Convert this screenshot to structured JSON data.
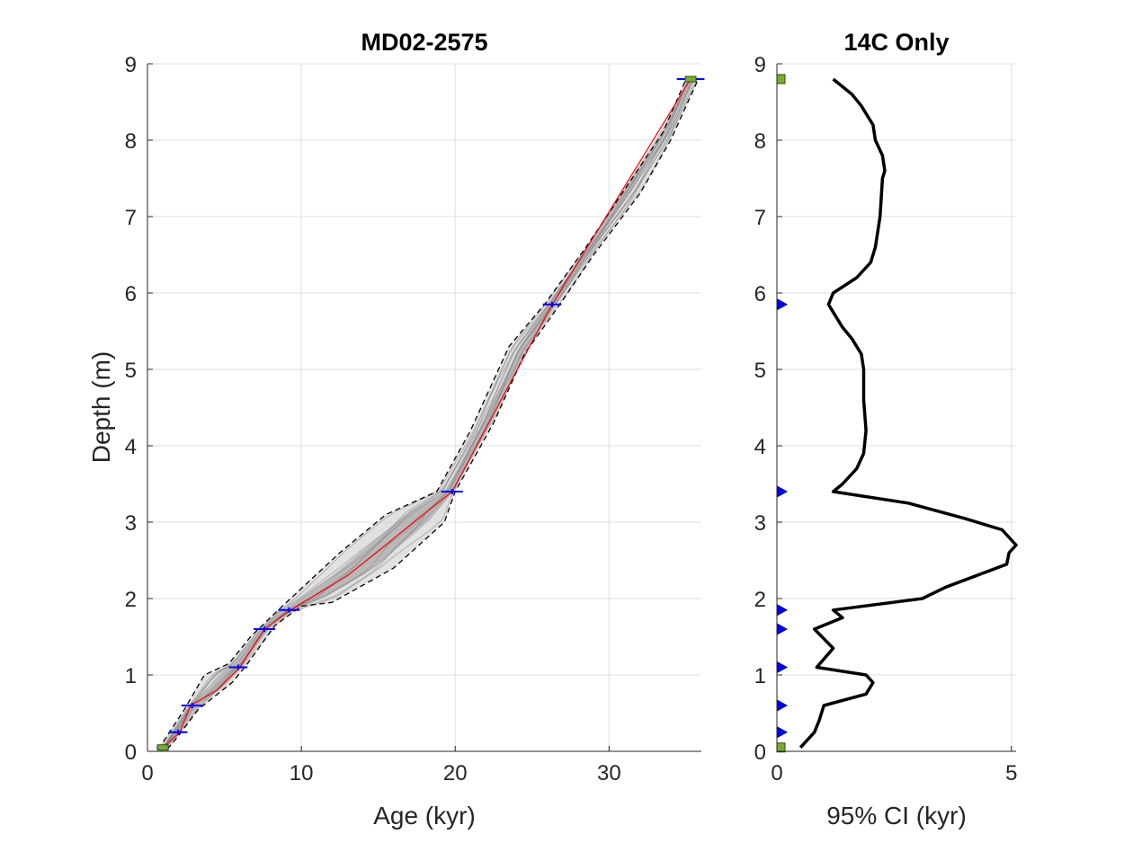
{
  "chart_data": [
    {
      "type": "line",
      "title": "MD02-2575",
      "xlabel": "Age (kyr)",
      "ylabel": "Depth (m)",
      "xlim": [
        0,
        36
      ],
      "ylim": [
        0,
        9
      ],
      "y_reversed": false,
      "grid": true,
      "xticks": [
        0,
        10,
        20,
        30
      ],
      "yticks": [
        0,
        1,
        2,
        3,
        4,
        5,
        6,
        7,
        8,
        9
      ],
      "series": [
        {
          "role": "median",
          "color": "#ff0000",
          "points": [
            [
              0.95,
              0.03
            ],
            [
              1.3,
              0.1
            ],
            [
              2.1,
              0.25
            ],
            [
              2.8,
              0.6
            ],
            [
              4.5,
              0.8
            ],
            [
              6.0,
              1.1
            ],
            [
              7.6,
              1.6
            ],
            [
              9.3,
              1.85
            ],
            [
              13.0,
              2.3
            ],
            [
              19.8,
              3.4
            ],
            [
              26.3,
              5.85
            ],
            [
              35.3,
              8.8
            ]
          ]
        },
        {
          "role": "upper_95",
          "color": "#000000",
          "points": [
            [
              0.7,
              0.03
            ],
            [
              1.1,
              0.15
            ],
            [
              2.4,
              0.55
            ],
            [
              3.7,
              1.0
            ],
            [
              5.3,
              1.15
            ],
            [
              6.7,
              1.5
            ],
            [
              8.5,
              1.85
            ],
            [
              12.5,
              2.6
            ],
            [
              15.5,
              3.1
            ],
            [
              18.8,
              3.4
            ],
            [
              21.0,
              4.2
            ],
            [
              23.5,
              5.3
            ],
            [
              25.8,
              5.85
            ],
            [
              28.5,
              6.6
            ],
            [
              31.5,
              7.5
            ],
            [
              33.5,
              8.1
            ],
            [
              35.0,
              8.8
            ]
          ]
        },
        {
          "role": "lower_95",
          "color": "#000000",
          "points": [
            [
              1.3,
              0.03
            ],
            [
              2.0,
              0.2
            ],
            [
              3.3,
              0.55
            ],
            [
              5.5,
              0.9
            ],
            [
              6.4,
              1.12
            ],
            [
              8.3,
              1.65
            ],
            [
              10.0,
              1.9
            ],
            [
              12.0,
              1.95
            ],
            [
              16.0,
              2.4
            ],
            [
              19.3,
              3.0
            ],
            [
              20.0,
              3.4
            ],
            [
              22.5,
              4.3
            ],
            [
              24.5,
              5.2
            ],
            [
              26.8,
              5.85
            ],
            [
              29.0,
              6.5
            ],
            [
              32.0,
              7.3
            ],
            [
              34.0,
              8.0
            ],
            [
              35.8,
              8.8
            ]
          ]
        }
      ],
      "age_constraints_14C": [
        {
          "depth": 0.25,
          "age": 2.0,
          "error": 0.6
        },
        {
          "depth": 0.6,
          "age": 2.9,
          "error": 0.7
        },
        {
          "depth": 1.1,
          "age": 5.9,
          "error": 0.6
        },
        {
          "depth": 1.6,
          "age": 7.6,
          "error": 0.7
        },
        {
          "depth": 1.85,
          "age": 9.2,
          "error": 0.7
        },
        {
          "depth": 3.4,
          "age": 19.8,
          "error": 0.7
        },
        {
          "depth": 5.85,
          "age": 26.3,
          "error": 0.6
        }
      ],
      "age_constraints_other": [
        {
          "depth": 0.05,
          "age": 1.0,
          "error": 0.4
        },
        {
          "depth": 8.8,
          "age": 35.3,
          "error": 0.9
        }
      ]
    },
    {
      "type": "line",
      "title": "14C Only",
      "xlabel": "95% CI (kyr)",
      "ylabel": "",
      "xlim": [
        0,
        5.1
      ],
      "ylim": [
        0,
        9
      ],
      "grid": true,
      "xticks": [
        0,
        5
      ],
      "yticks": [
        0,
        1,
        2,
        3,
        4,
        5,
        6,
        7,
        8,
        9
      ],
      "series": [
        {
          "color": "#000000",
          "points": [
            [
              0.5,
              0.05
            ],
            [
              0.65,
              0.15
            ],
            [
              0.8,
              0.25
            ],
            [
              0.9,
              0.4
            ],
            [
              1.0,
              0.6
            ],
            [
              1.9,
              0.75
            ],
            [
              2.05,
              0.9
            ],
            [
              1.9,
              1.0
            ],
            [
              0.85,
              1.1
            ],
            [
              1.2,
              1.35
            ],
            [
              0.8,
              1.6
            ],
            [
              1.4,
              1.75
            ],
            [
              1.2,
              1.85
            ],
            [
              3.1,
              2.0
            ],
            [
              3.6,
              2.15
            ],
            [
              4.9,
              2.45
            ],
            [
              4.95,
              2.6
            ],
            [
              5.1,
              2.7
            ],
            [
              4.8,
              2.9
            ],
            [
              4.0,
              3.05
            ],
            [
              2.8,
              3.25
            ],
            [
              1.2,
              3.4
            ],
            [
              1.4,
              3.5
            ],
            [
              1.7,
              3.7
            ],
            [
              1.85,
              3.9
            ],
            [
              1.9,
              4.2
            ],
            [
              1.85,
              4.6
            ],
            [
              1.85,
              5.0
            ],
            [
              1.8,
              5.2
            ],
            [
              1.6,
              5.4
            ],
            [
              1.4,
              5.55
            ],
            [
              1.1,
              5.85
            ],
            [
              1.2,
              6.0
            ],
            [
              1.7,
              6.2
            ],
            [
              2.0,
              6.4
            ],
            [
              2.1,
              6.6
            ],
            [
              2.2,
              7.0
            ],
            [
              2.25,
              7.5
            ],
            [
              2.3,
              7.6
            ],
            [
              2.25,
              7.8
            ],
            [
              2.1,
              8.0
            ],
            [
              2.05,
              8.2
            ],
            [
              1.8,
              8.45
            ],
            [
              1.6,
              8.6
            ],
            [
              1.2,
              8.8
            ]
          ]
        }
      ],
      "markers_14C_depths": [
        0.25,
        0.6,
        1.1,
        1.6,
        1.85,
        3.4,
        5.85
      ],
      "markers_other_depths": [
        0.05,
        8.8
      ]
    }
  ]
}
